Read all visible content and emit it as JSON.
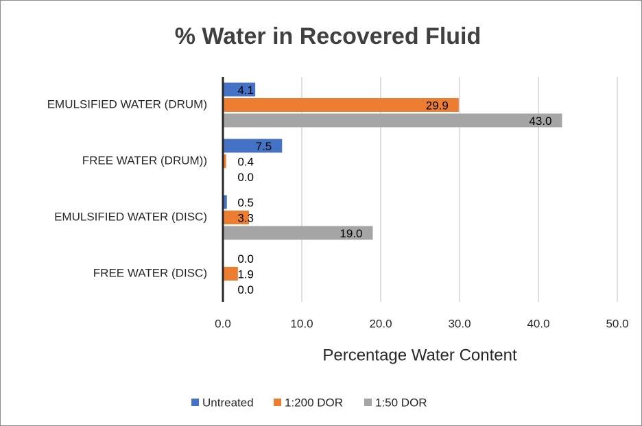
{
  "chart_data": {
    "type": "bar",
    "orientation": "horizontal",
    "title": "% Water in Recovered Fluid",
    "xlabel": "Percentage Water Content",
    "categories": [
      "EMULSIFIED WATER (DRUM)",
      "FREE WATER (DRUM))",
      "EMULSIFIED WATER (DISC)",
      "FREE WATER (DISC)"
    ],
    "series": [
      {
        "name": "Untreated",
        "color": "#4472c4",
        "values": [
          4.1,
          7.5,
          0.5,
          0
        ],
        "value_labels": [
          "4.1",
          "7.5",
          "0.5",
          "0.0"
        ]
      },
      {
        "name": "1:200 DOR",
        "color": "#ed7d31",
        "values": [
          29.9,
          0.4,
          3.3,
          1.9
        ],
        "value_labels": [
          "29.9",
          "0.4",
          "3.3",
          "1.9"
        ]
      },
      {
        "name": "1:50 DOR",
        "color": "#a5a5a5",
        "values": [
          43,
          0,
          19,
          0
        ],
        "value_labels": [
          "43.0",
          "0.0",
          "19.0",
          "0.0"
        ]
      }
    ],
    "xlim": [
      0,
      50
    ],
    "xticks": [
      {
        "value": 0,
        "label": "0.0"
      },
      {
        "value": 10,
        "label": "10.0"
      },
      {
        "value": 20,
        "label": "20.0"
      },
      {
        "value": 30,
        "label": "30.0"
      },
      {
        "value": 40,
        "label": "40.0"
      },
      {
        "value": 50,
        "label": "50.0"
      }
    ],
    "grid": true,
    "legend": "bottom"
  }
}
